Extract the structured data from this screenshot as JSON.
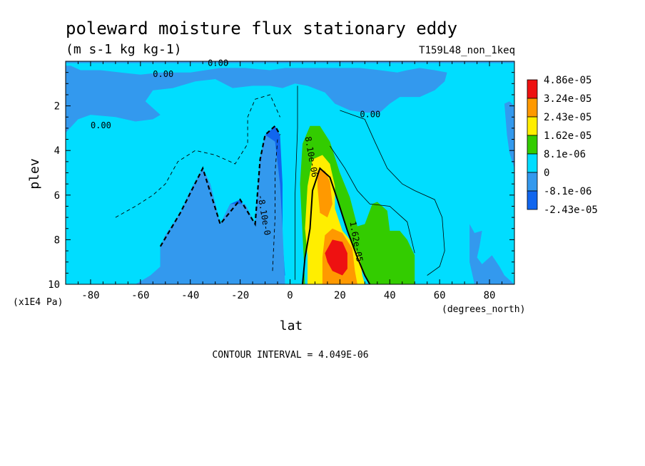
{
  "chart_data": {
    "type": "heatmap",
    "title": "poleward moisture flux stationary eddy",
    "subtitle": "(m s-1 kg kg-1)",
    "run_label": "T159L48_non_1keq",
    "xlabel": "lat",
    "x_unit": "(degrees_north)",
    "ylabel": "plev",
    "y_unit": "(x1E4 Pa)",
    "footer": "CONTOUR INTERVAL = 4.049E-06",
    "xlim": [
      -90,
      90
    ],
    "ylim": [
      0,
      10
    ],
    "y_inverted": true,
    "x_ticks": [
      "-80",
      "-60",
      "-40",
      "-20",
      "0",
      "20",
      "40",
      "60",
      "80"
    ],
    "y_ticks": [
      "2",
      "4",
      "6",
      "8",
      "10"
    ],
    "legend": {
      "position": "right",
      "labels": [
        "4.86e-05",
        "3.24e-05",
        "2.43e-05",
        "1.62e-05",
        "8.1e-06",
        "0",
        "-8.1e-06",
        "-2.43e-05"
      ],
      "colors": [
        "#ee1111",
        "#ff9900",
        "#ffee00",
        "#33cc00",
        "#00ddff",
        "#3399ee",
        "#1166ee"
      ]
    },
    "contour_labels": [
      {
        "text": "0.00",
        "lat": -55,
        "p": 0.7
      },
      {
        "text": "0.00",
        "lat": -33,
        "p": 0.2
      },
      {
        "text": "0.00",
        "lat": 28,
        "p": 2.5
      },
      {
        "text": "0.00",
        "lat": -80,
        "p": 3.0
      },
      {
        "text": "8.10e-06",
        "lat": 6,
        "p": 3.4
      },
      {
        "text": "-8.10e-0",
        "lat": -13,
        "p": 6.0
      },
      {
        "text": "1.62e-05",
        "lat": 24,
        "p": 7.2
      }
    ],
    "regions": [
      {
        "level": "neg_strong",
        "color": "#1166ee",
        "points": [
          [
            -52,
            8.3
          ],
          [
            -50,
            7.8
          ],
          [
            -44,
            6.8
          ],
          [
            -40,
            5.8
          ],
          [
            -35,
            4.8
          ],
          [
            -32,
            5.5
          ],
          [
            -28,
            7.3
          ],
          [
            -24,
            6.4
          ],
          [
            -20,
            6.2
          ],
          [
            -16,
            7.0
          ],
          [
            -14,
            7.3
          ],
          [
            -12,
            4.4
          ],
          [
            -10,
            3.3
          ],
          [
            -6,
            2.9
          ],
          [
            -4,
            3.3
          ],
          [
            -3,
            5.5
          ],
          [
            -3,
            8.0
          ],
          [
            -2,
            9.6
          ],
          [
            -6,
            9.8
          ],
          [
            -10,
            9.4
          ],
          [
            -16,
            9.7
          ],
          [
            -28,
            9.6
          ],
          [
            -38,
            9.3
          ],
          [
            -48,
            9.6
          ],
          [
            -52,
            9.2
          ]
        ]
      },
      {
        "level": "neg_weak",
        "color": "#3399ee",
        "points": [
          [
            -90,
            3.2
          ],
          [
            -85,
            2.6
          ],
          [
            -80,
            2.4
          ],
          [
            -70,
            2.5
          ],
          [
            -62,
            2.7
          ],
          [
            -55,
            2.6
          ],
          [
            -52,
            2.4
          ],
          [
            -58,
            1.8
          ],
          [
            -55,
            1.3
          ],
          [
            -47,
            1.2
          ],
          [
            -38,
            0.9
          ],
          [
            -30,
            0.8
          ],
          [
            -23,
            1.2
          ],
          [
            -15,
            1.1
          ],
          [
            -8,
            1.1
          ],
          [
            -3,
            1.2
          ],
          [
            2,
            1.0
          ],
          [
            7,
            1.1
          ],
          [
            14,
            1.4
          ],
          [
            18,
            1.9
          ],
          [
            24,
            2.2
          ],
          [
            30,
            2.3
          ],
          [
            36,
            2.3
          ],
          [
            40,
            1.9
          ],
          [
            44,
            1.6
          ],
          [
            52,
            1.6
          ],
          [
            58,
            1.3
          ],
          [
            62,
            0.9
          ],
          [
            63,
            0.5
          ],
          [
            58,
            0.4
          ],
          [
            52,
            0.3
          ],
          [
            47,
            0.4
          ],
          [
            43,
            0.5
          ],
          [
            36,
            0.4
          ],
          [
            28,
            0.3
          ],
          [
            18,
            0.3
          ],
          [
            8,
            0.3
          ],
          [
            -2,
            0.3
          ],
          [
            -8,
            0.4
          ],
          [
            -18,
            0.3
          ],
          [
            -28,
            0.3
          ],
          [
            -40,
            0.5
          ],
          [
            -52,
            0.5
          ],
          [
            -60,
            0.6
          ],
          [
            -68,
            0.5
          ],
          [
            -76,
            0.4
          ],
          [
            -84,
            0.4
          ],
          [
            -88,
            0.2
          ],
          [
            -90,
            0.2
          ],
          [
            -90,
            10
          ],
          [
            -2,
            10
          ],
          [
            -3,
            7.5
          ],
          [
            -4,
            5.5
          ],
          [
            -6,
            3.6
          ],
          [
            -10,
            3.3
          ],
          [
            -12,
            4.3
          ],
          [
            -14,
            7.3
          ],
          [
            -18,
            6.4
          ],
          [
            -24,
            6.4
          ],
          [
            -28,
            7.3
          ],
          [
            -32,
            5.5
          ],
          [
            -35,
            4.8
          ],
          [
            -40,
            5.8
          ],
          [
            -44,
            6.8
          ],
          [
            -50,
            7.8
          ],
          [
            -52,
            8.3
          ],
          [
            -52,
            9.2
          ],
          [
            -56,
            9.6
          ],
          [
            -62,
            10
          ],
          [
            -90,
            10
          ]
        ]
      },
      {
        "level": "neg_weak",
        "color": "#3399ee",
        "points": [
          [
            72,
            7.3
          ],
          [
            74,
            7.7
          ],
          [
            77,
            7.6
          ],
          [
            76,
            8.3
          ],
          [
            75,
            8.8
          ],
          [
            77,
            9.1
          ],
          [
            81,
            8.7
          ],
          [
            84,
            9.2
          ],
          [
            86,
            9.6
          ],
          [
            90,
            10
          ],
          [
            74,
            10
          ],
          [
            72,
            9.0
          ]
        ]
      },
      {
        "level": "neg_weak",
        "color": "#3399ee",
        "points": [
          [
            86,
            1.9
          ],
          [
            88,
            1.8
          ],
          [
            90,
            2.0
          ],
          [
            90,
            4.8
          ],
          [
            88,
            4.1
          ],
          [
            87,
            3.3
          ]
        ]
      },
      {
        "level": "neg_weak",
        "color": "#3399ee",
        "points": [
          [
            -90,
            0.0
          ],
          [
            90,
            0.0
          ],
          [
            90,
            0.08
          ],
          [
            -90,
            0.08
          ]
        ]
      },
      {
        "level": "pos_weak",
        "color": "#33cc00",
        "points": [
          [
            4,
            5.5
          ],
          [
            5,
            3.7
          ],
          [
            8,
            2.9
          ],
          [
            12,
            2.9
          ],
          [
            16,
            3.6
          ],
          [
            20,
            5.0
          ],
          [
            24,
            6.1
          ],
          [
            27,
            7.4
          ],
          [
            30,
            7.3
          ],
          [
            33,
            6.4
          ],
          [
            35,
            6.3
          ],
          [
            39,
            6.7
          ],
          [
            40,
            7.6
          ],
          [
            44,
            7.6
          ],
          [
            47,
            8.0
          ],
          [
            50,
            8.7
          ],
          [
            50,
            10
          ],
          [
            32,
            10
          ],
          [
            30,
            9.6
          ],
          [
            27,
            8.8
          ],
          [
            23,
            7.6
          ],
          [
            19,
            6.2
          ],
          [
            16,
            5.2
          ],
          [
            12,
            4.8
          ],
          [
            9,
            5.8
          ],
          [
            8,
            7.5
          ],
          [
            6,
            8.8
          ],
          [
            5,
            10
          ],
          [
            6,
            10
          ]
        ]
      },
      {
        "level": "pos_mid",
        "color": "#ffee00",
        "points": [
          [
            6,
            7.5
          ],
          [
            7,
            5.6
          ],
          [
            9,
            4.4
          ],
          [
            13,
            4.2
          ],
          [
            16,
            4.6
          ],
          [
            18,
            5.6
          ],
          [
            18,
            6.6
          ],
          [
            21,
            7.6
          ],
          [
            24,
            8.0
          ],
          [
            28,
            8.8
          ],
          [
            29,
            9.6
          ],
          [
            30,
            10
          ],
          [
            7,
            10
          ],
          [
            7,
            8.7
          ]
        ]
      },
      {
        "level": "pos_strong",
        "color": "#ff9900",
        "points": [
          [
            11,
            5.6
          ],
          [
            11,
            4.9
          ],
          [
            14,
            4.9
          ],
          [
            16,
            5.4
          ],
          [
            17,
            6.4
          ],
          [
            15,
            7.0
          ],
          [
            12,
            6.8
          ]
        ]
      },
      {
        "level": "pos_strong",
        "color": "#ff9900",
        "points": [
          [
            13,
            8.8
          ],
          [
            14,
            7.8
          ],
          [
            17,
            7.5
          ],
          [
            21,
            7.7
          ],
          [
            25,
            8.4
          ],
          [
            26,
            9.4
          ],
          [
            27,
            10
          ],
          [
            13,
            10
          ]
        ]
      },
      {
        "level": "pos_max",
        "color": "#ee1111",
        "points": [
          [
            14,
            8.6
          ],
          [
            17,
            8.0
          ],
          [
            21,
            8.1
          ],
          [
            23,
            8.6
          ],
          [
            23,
            9.3
          ],
          [
            21,
            9.6
          ],
          [
            17,
            9.4
          ],
          [
            15,
            9.0
          ]
        ]
      }
    ],
    "contours": [
      {
        "style": "thick-dashed",
        "points": [
          [
            -52,
            8.3
          ],
          [
            -44,
            6.8
          ],
          [
            -35,
            4.8
          ],
          [
            -28,
            7.3
          ],
          [
            -20,
            6.2
          ],
          [
            -14,
            7.3
          ],
          [
            -12,
            4.4
          ],
          [
            -10,
            3.3
          ],
          [
            -6,
            2.9
          ],
          [
            -4,
            3.3
          ]
        ]
      },
      {
        "style": "thin-dashed",
        "points": [
          [
            -70,
            7.0
          ],
          [
            -62,
            6.5
          ],
          [
            -55,
            6.0
          ],
          [
            -50,
            5.5
          ],
          [
            -45,
            4.5
          ],
          [
            -38,
            4.0
          ],
          [
            -30,
            4.2
          ],
          [
            -22,
            4.6
          ],
          [
            -17,
            3.7
          ],
          [
            -17,
            2.5
          ],
          [
            -14,
            1.7
          ],
          [
            -8,
            1.5
          ],
          [
            -4,
            2.5
          ]
        ]
      },
      {
        "style": "thin-dashed",
        "points": [
          [
            -7,
            9.4
          ],
          [
            -6,
            7.0
          ],
          [
            -6,
            5.0
          ],
          [
            -5,
            3.5
          ]
        ]
      },
      {
        "style": "thin-solid",
        "points": [
          [
            3,
            1.1
          ],
          [
            3,
            3.0
          ],
          [
            2,
            6.0
          ],
          [
            2,
            9.8
          ]
        ]
      },
      {
        "style": "thin-solid",
        "points": [
          [
            20,
            2.2
          ],
          [
            30,
            2.6
          ],
          [
            34,
            3.6
          ],
          [
            39,
            4.8
          ],
          [
            45,
            5.5
          ],
          [
            50,
            5.8
          ],
          [
            58,
            6.2
          ],
          [
            61,
            7.0
          ],
          [
            62,
            8.5
          ],
          [
            60,
            9.2
          ],
          [
            55,
            9.6
          ]
        ]
      },
      {
        "style": "thin-solid",
        "points": [
          [
            16,
            3.8
          ],
          [
            22,
            4.8
          ],
          [
            27,
            5.8
          ],
          [
            32,
            6.4
          ],
          [
            40,
            6.5
          ],
          [
            47,
            7.2
          ],
          [
            50,
            8.6
          ]
        ]
      },
      {
        "style": "thick-solid",
        "points": [
          [
            5,
            10
          ],
          [
            6,
            8.8
          ],
          [
            8,
            7.5
          ],
          [
            9,
            5.8
          ],
          [
            12,
            4.8
          ],
          [
            16,
            5.2
          ],
          [
            19,
            6.2
          ],
          [
            23,
            7.6
          ],
          [
            27,
            8.8
          ],
          [
            30,
            9.6
          ],
          [
            32,
            10
          ]
        ]
      }
    ]
  }
}
